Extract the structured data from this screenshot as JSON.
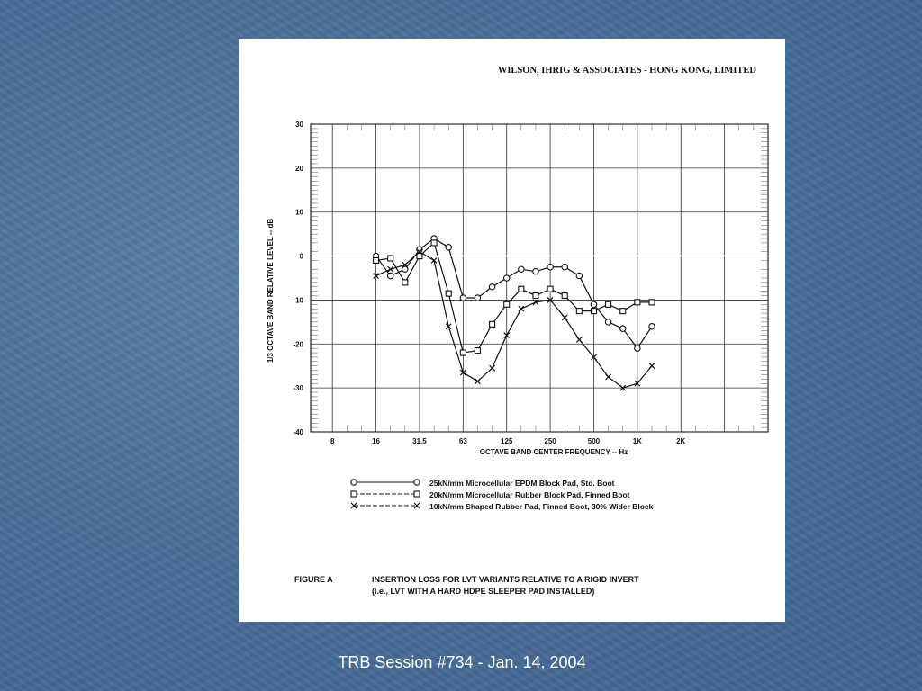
{
  "footer": {
    "text": "TRB Session #734 - Jan. 14, 2004"
  },
  "figure": {
    "company_header": "WILSON, IHRIG & ASSOCIATES - HONG KONG, LIMITED",
    "caption_label": "FIGURE A",
    "caption_line1": "INSERTION LOSS FOR LVT VARIANTS RELATIVE TO A RIGID INVERT",
    "caption_line2": "(i.e., LVT WITH A HARD HDPE SLEEPER PAD INSTALLED)"
  },
  "chart_data": {
    "type": "line",
    "xlabel": "OCTAVE BAND CENTER FREQUENCY -- Hz",
    "ylabel": "1/3 OCTAVE BAND RELATIVE LEVEL -- dB",
    "ylim": [
      -40,
      30
    ],
    "yticks": [
      "30",
      "20",
      "10",
      "0",
      "-10",
      "-20",
      "-30",
      "-40"
    ],
    "xtick_labels": [
      "8",
      "16",
      "31.5",
      "63",
      "125",
      "250",
      "500",
      "1K",
      "2K"
    ],
    "grid": true,
    "legend_position": "bottom",
    "x_thirds": [
      "16",
      "20",
      "25",
      "31.5",
      "40",
      "50",
      "63",
      "80",
      "100",
      "125",
      "160",
      "200",
      "250",
      "315",
      "400",
      "500",
      "630",
      "800",
      "1K",
      "1.25K"
    ],
    "series": [
      {
        "name": "25kN/mm Microcellular EPDM Block Pad, Std. Boot",
        "marker": "circle",
        "values": [
          0,
          -4.5,
          -3,
          1.5,
          4,
          2,
          -9.5,
          -9.5,
          -7,
          -5,
          -3,
          -3.5,
          -2.5,
          -2.5,
          -4.5,
          -11,
          -15,
          -16.5,
          -21,
          -16
        ]
      },
      {
        "name": "20kN/mm Microcellular Rubber Block Pad, Finned Boot",
        "marker": "square",
        "values": [
          -1,
          -0.5,
          -6,
          0,
          3,
          -8.5,
          -22,
          -21.5,
          -15.5,
          -11,
          -7.5,
          -9,
          -7.5,
          -9,
          -12.5,
          -12.5,
          -11,
          -12.5,
          -10.5,
          -10.5
        ]
      },
      {
        "name": "10kN/mm Shaped Rubber Pad, Finned Boot, 30% Wider Block",
        "marker": "x",
        "values": [
          -4.5,
          -3,
          -2,
          1,
          -1,
          -16,
          -26.5,
          -28.5,
          -25.5,
          -18,
          -12,
          -10.5,
          -10,
          -14,
          -19,
          -23,
          -27.5,
          -30,
          -29,
          -25
        ]
      }
    ]
  }
}
